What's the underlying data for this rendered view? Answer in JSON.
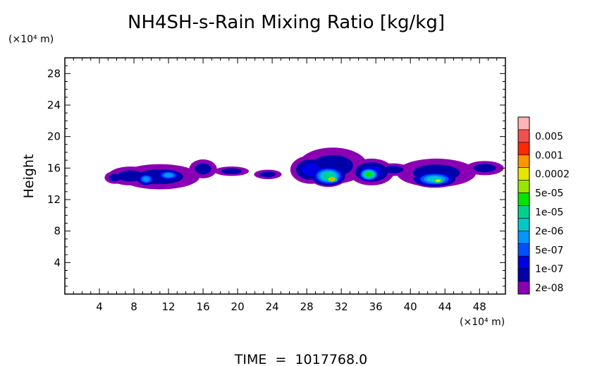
{
  "chart_data": {
    "type": "heatmap",
    "title": "NH4SH-s-Rain Mixing Ratio [kg/kg]",
    "ylabel": "Height",
    "xlabel": "",
    "y_unit": "(×10⁴ m)",
    "x_unit": "(×10⁴ m)",
    "footer": "TIME  =  1017768.0",
    "xlim": [
      0,
      51
    ],
    "ylim": [
      0,
      30
    ],
    "x_ticks": [
      4,
      8,
      12,
      16,
      20,
      24,
      28,
      32,
      36,
      40,
      44,
      48
    ],
    "y_ticks": [
      4,
      8,
      12,
      16,
      20,
      24,
      28
    ],
    "grid": false,
    "legend": {
      "placement": "right",
      "labels": [
        "0.005",
        "0.001",
        "0.0002",
        "5e-05",
        "1e-05",
        "2e-06",
        "5e-07",
        "1e-07",
        "2e-08"
      ],
      "colors": [
        "#ffb4b4",
        "#f05050",
        "#ff2800",
        "#ff9600",
        "#e6e600",
        "#96e600",
        "#00e600",
        "#00d28c",
        "#00c8c8",
        "#0096ff",
        "#0050ff",
        "#0000e6",
        "#0000aa",
        "#8c00b4"
      ]
    },
    "cloud_lobes": [
      {
        "x": 5.8,
        "y": 14.8,
        "rx": 1.2,
        "ry": 0.8,
        "level": 1
      },
      {
        "x": 7.6,
        "y": 15.0,
        "rx": 2.6,
        "ry": 1.2,
        "level": 1
      },
      {
        "x": 9.4,
        "y": 14.6,
        "rx": 1.2,
        "ry": 0.9,
        "level": 4
      },
      {
        "x": 11.0,
        "y": 14.9,
        "rx": 4.6,
        "ry": 1.6,
        "level": 1
      },
      {
        "x": 12.0,
        "y": 15.1,
        "rx": 1.6,
        "ry": 0.8,
        "level": 4
      },
      {
        "x": 16.0,
        "y": 15.9,
        "rx": 1.6,
        "ry": 1.2,
        "level": 1
      },
      {
        "x": 19.3,
        "y": 15.6,
        "rx": 2.0,
        "ry": 0.6,
        "level": 1
      },
      {
        "x": 23.5,
        "y": 15.2,
        "rx": 1.6,
        "ry": 0.6,
        "level": 1
      },
      {
        "x": 28.5,
        "y": 15.8,
        "rx": 2.4,
        "ry": 1.8,
        "level": 2
      },
      {
        "x": 31.0,
        "y": 16.3,
        "rx": 4.0,
        "ry": 2.3,
        "level": 1
      },
      {
        "x": 30.5,
        "y": 15.0,
        "rx": 2.2,
        "ry": 1.4,
        "level": 6
      },
      {
        "x": 30.9,
        "y": 14.6,
        "rx": 1.0,
        "ry": 0.6,
        "level": 10
      },
      {
        "x": 35.5,
        "y": 15.5,
        "rx": 2.6,
        "ry": 1.7,
        "level": 2
      },
      {
        "x": 35.2,
        "y": 15.2,
        "rx": 1.4,
        "ry": 1.0,
        "level": 7
      },
      {
        "x": 38.0,
        "y": 15.8,
        "rx": 2.0,
        "ry": 0.8,
        "level": 1
      },
      {
        "x": 43.0,
        "y": 15.4,
        "rx": 4.6,
        "ry": 1.8,
        "level": 1
      },
      {
        "x": 42.8,
        "y": 14.6,
        "rx": 2.8,
        "ry": 1.1,
        "level": 5
      },
      {
        "x": 43.2,
        "y": 14.4,
        "rx": 1.0,
        "ry": 0.5,
        "level": 9
      },
      {
        "x": 48.6,
        "y": 16.0,
        "rx": 2.2,
        "ry": 0.9,
        "level": 1
      }
    ]
  }
}
